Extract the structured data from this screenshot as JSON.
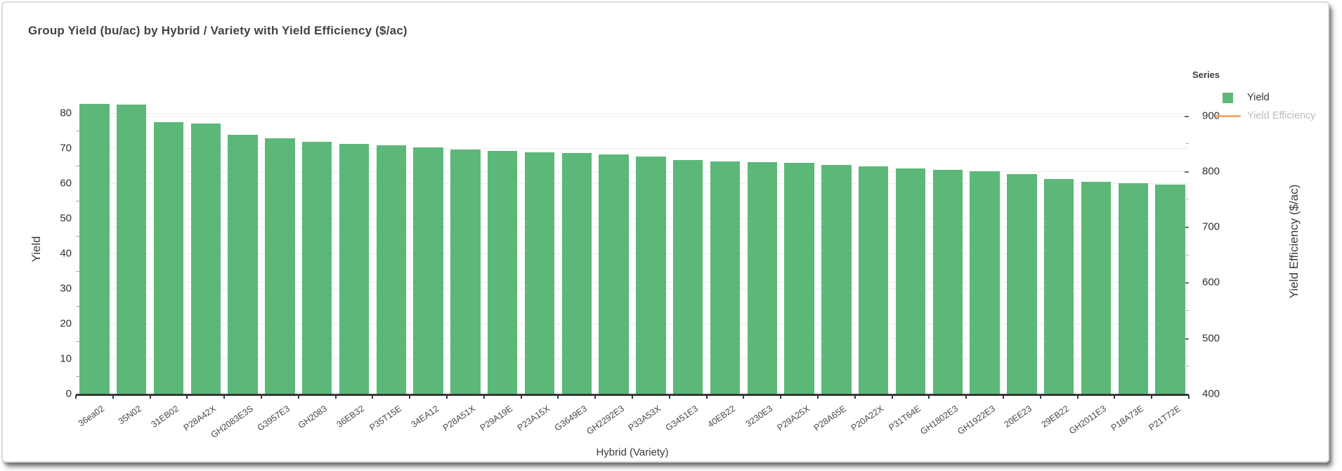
{
  "title": "Group Yield (bu/ac) by Hybrid / Variety with Yield Efficiency ($/ac)",
  "legend": {
    "title": "Series",
    "items": [
      {
        "label": "Yield",
        "swatch": "square",
        "color": "#5cb878",
        "active": true
      },
      {
        "label": "Yield Efficiency",
        "swatch": "line",
        "color": "#f9aa6a",
        "active": false
      }
    ]
  },
  "chart_data": {
    "type": "bar",
    "title": "Group Yield (bu/ac) by Hybrid / Variety with Yield Efficiency ($/ac)",
    "categories": [
      "36ea02",
      "35N02",
      "31EB02",
      "P28A42X",
      "GH2083E3S",
      "G3957E3",
      "GH2083",
      "36EB32",
      "P35T15E",
      "34EA12",
      "P28A51X",
      "P29A19E",
      "P23A15X",
      "G3649E3",
      "GH2292E3",
      "P33A53X",
      "G3451E3",
      "40EB22",
      "3230E3",
      "P29A25X",
      "P28A65E",
      "P20A22X",
      "P31T64E",
      "GH1802E3",
      "GH1922E3",
      "20EE23",
      "29EB22",
      "GH2011E3",
      "P18A73E",
      "P21T72E"
    ],
    "series": [
      {
        "name": "Yield",
        "type": "bar",
        "axis": "left",
        "color": "#5cb878",
        "visible": true,
        "values": [
          82.6,
          82.5,
          77.5,
          77.0,
          73.8,
          72.8,
          71.8,
          71.3,
          70.9,
          70.3,
          69.6,
          69.2,
          68.9,
          68.6,
          68.3,
          67.6,
          66.6,
          66.3,
          66.1,
          65.8,
          65.2,
          64.8,
          64.3,
          63.9,
          63.5,
          62.6,
          61.2,
          60.4,
          60.1,
          59.7
        ]
      },
      {
        "name": "Yield Efficiency",
        "type": "line",
        "axis": "right",
        "color": "#f9aa6a",
        "visible": false,
        "values": []
      }
    ],
    "xlabel": "Hybrid (Variety)",
    "ylabel": "Yield",
    "ylabel_right": "Yield Efficiency ($/ac)",
    "y_left_ticks": [
      0,
      10,
      20,
      30,
      40,
      50,
      60,
      70,
      80
    ],
    "y_left_range": [
      0,
      88
    ],
    "y_right_ticks": [
      400,
      500,
      600,
      700,
      800,
      900
    ],
    "y_right_range": [
      400,
      900
    ],
    "grid": true,
    "legend_position": "top-right"
  }
}
